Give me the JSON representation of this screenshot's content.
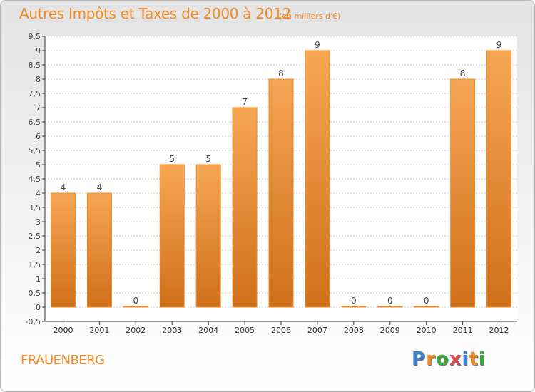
{
  "header": {
    "title": "Autres Impôts et Taxes de 2000 à 2012",
    "subtitle": "(en milliers d'€)"
  },
  "footer": {
    "commune": "FRAUENBERG",
    "brand": "Proxiti",
    "brand_colors": [
      "#3d7fd1",
      "#f08a24",
      "#3aa83a",
      "#d94b4b",
      "#3d7fd1",
      "#f08a24",
      "#3aa83a"
    ]
  },
  "colors": {
    "bar_top": "#f6a653",
    "bar_bottom": "#d0701a",
    "bar_edge": "#f08a24",
    "title": "#f08a24",
    "axis": "#333333",
    "grid": "#cfcfcf"
  },
  "chart_data": {
    "type": "bar",
    "title": "Autres Impôts et Taxes de 2000 à 2012",
    "subtitle": "(en milliers d'€)",
    "categories": [
      "2000",
      "2001",
      "2002",
      "2003",
      "2004",
      "2005",
      "2006",
      "2007",
      "2008",
      "2009",
      "2010",
      "2011",
      "2012"
    ],
    "values": [
      4,
      4,
      0,
      5,
      5,
      7,
      8,
      9,
      0,
      0,
      0,
      8,
      9
    ],
    "data_labels": [
      "4",
      "4",
      "0",
      "5",
      "5",
      "7",
      "8",
      "9",
      "0",
      "0",
      "0",
      "8",
      "9"
    ],
    "y_ticks": [
      "-0,5",
      "0",
      "0,5",
      "1",
      "1,5",
      "2",
      "2,5",
      "3",
      "3,5",
      "4",
      "4,5",
      "5",
      "5,5",
      "6",
      "6,5",
      "7",
      "7,5",
      "8",
      "8,5",
      "9",
      "9,5"
    ],
    "ylim": [
      -0.5,
      9.5
    ],
    "grid": true,
    "xlabel": "",
    "ylabel": ""
  }
}
